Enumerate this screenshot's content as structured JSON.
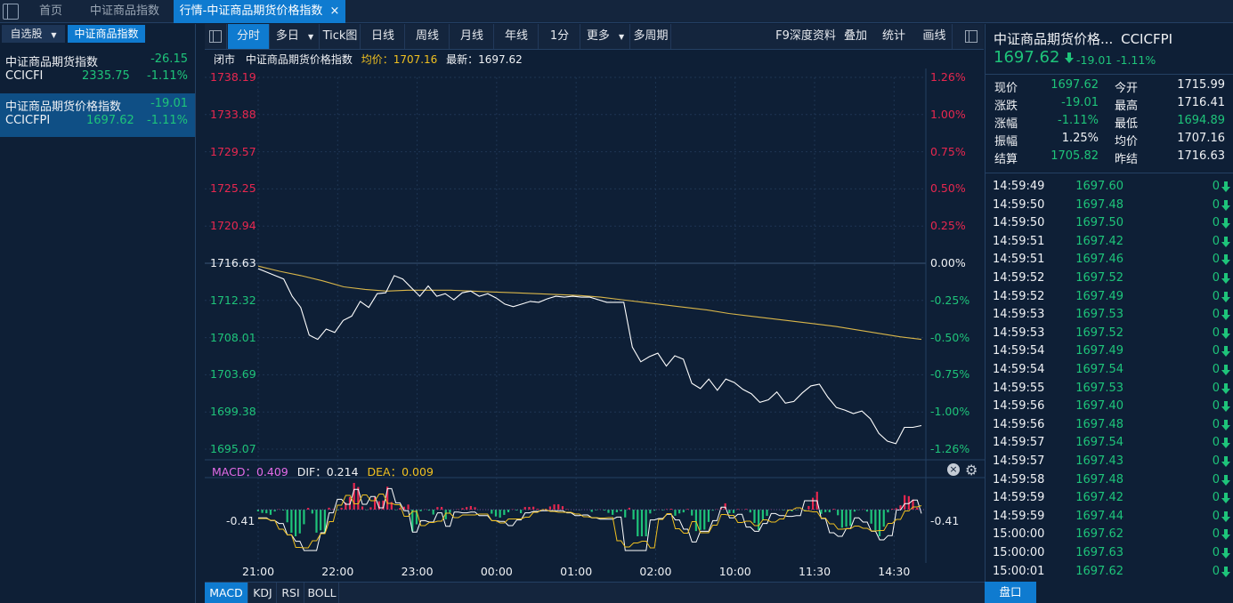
{
  "tabs": [
    {
      "label": "首页"
    },
    {
      "label": "中证商品指数"
    },
    {
      "label": "行情-中证商品期货价格指数",
      "close": "×"
    }
  ],
  "left_panel": {
    "tabs": [
      {
        "label": "自选股",
        "arrow": "▼"
      },
      {
        "label": "中证商品指数"
      }
    ],
    "watchlist": [
      {
        "name": "中证商品期货指数",
        "change": "-26.15",
        "code": "CCICFI",
        "price": "2335.75",
        "pct": "-1.11%"
      },
      {
        "name": "中证商品期货价格指数",
        "change": "-19.01",
        "code": "CCICFPI",
        "price": "1697.62",
        "pct": "-1.11%"
      }
    ]
  },
  "toolbar": {
    "buttons": [
      "分时",
      "多日",
      "Tick图",
      "日线",
      "周线",
      "月线",
      "年线",
      "1分",
      "更多",
      "多周期"
    ],
    "right_buttons": [
      "F9深度资料",
      "叠加",
      "统计",
      "画线"
    ],
    "dropdown_arrow": "▼"
  },
  "info_line": {
    "status": "闭市",
    "name": "中证商品期货价格指数",
    "avg_label": "均价：1707.16",
    "latest_label": "最新：1697.62"
  },
  "chart_data": {
    "type": "line",
    "price_axis": [
      "1738.19",
      "1733.88",
      "1729.57",
      "1725.25",
      "1720.94",
      "1716.63",
      "1712.32",
      "1708.01",
      "1703.69",
      "1699.38",
      "1695.07"
    ],
    "pct_axis": [
      "1.26%",
      "1.00%",
      "0.75%",
      "0.50%",
      "0.25%",
      "0.00%",
      "-0.25%",
      "-0.50%",
      "-0.75%",
      "-1.00%",
      "-1.26%"
    ],
    "time_axis": [
      "21:00",
      "22:00",
      "23:00",
      "00:00",
      "01:00",
      "02:00",
      "10:00",
      "11:30",
      "14:30"
    ],
    "ylim": [
      1695.07,
      1738.19
    ],
    "prev_settle": 1716.63,
    "price": [
      1716.0,
      1715.6,
      1715.2,
      1714.8,
      1712.8,
      1711.5,
      1708.3,
      1707.8,
      1709.0,
      1708.6,
      1710.0,
      1710.5,
      1712.2,
      1711.5,
      1713.1,
      1713.2,
      1715.2,
      1714.8,
      1713.8,
      1712.8,
      1714.0,
      1712.8,
      1713.1,
      1712.4,
      1713.2,
      1713.4,
      1712.8,
      1713.1,
      1712.6,
      1711.9,
      1711.6,
      1711.9,
      1712.2,
      1712.1,
      1712.5,
      1712.8,
      1712.7,
      1712.8,
      1712.7,
      1712.7,
      1712.4,
      1712.1,
      1712.1,
      1712.1,
      1706.9,
      1705.2,
      1705.8,
      1706.2,
      1704.7,
      1705.9,
      1705.5,
      1702.7,
      1702.1,
      1703.2,
      1701.9,
      1703.2,
      1702.8,
      1702.0,
      1701.5,
      1700.5,
      1700.8,
      1701.7,
      1700.4,
      1700.6,
      1701.6,
      1702.4,
      1702.6,
      1701.1,
      1699.9,
      1699.6,
      1699.2,
      1699.5,
      1698.6,
      1696.9,
      1696.0,
      1695.7,
      1697.6,
      1697.6,
      1697.8
    ],
    "avg": [
      1716.3,
      1715.7,
      1715.2,
      1714.6,
      1713.9,
      1713.6,
      1713.4,
      1713.5,
      1713.5,
      1713.5,
      1713.4,
      1713.3,
      1713.2,
      1713.1,
      1713.0,
      1712.9,
      1712.7,
      1712.4,
      1712.1,
      1711.8,
      1711.5,
      1711.2,
      1710.8,
      1710.5,
      1710.2,
      1709.9,
      1709.6,
      1709.3,
      1708.9,
      1708.5,
      1708.1,
      1707.8
    ],
    "macd": {
      "macd_label": "MACD：0.409",
      "dif_label": "DIF：0.214",
      "dea_label": "DEA：0.009",
      "axis_left": "-0.41",
      "axis_right": "-0.41"
    }
  },
  "indicator_tabs": [
    "MACD",
    "KDJ",
    "RSI",
    "BOLL"
  ],
  "quote": {
    "title": "中证商品期货价格...",
    "code": "CCICFPI",
    "price": "1697.62",
    "change": "-19.01",
    "pct": "-1.11%",
    "rows": [
      {
        "l1": "现价",
        "v1": "1697.62",
        "c1": "down",
        "l2": "今开",
        "v2": "1715.99",
        "c2": "white"
      },
      {
        "l1": "涨跌",
        "v1": "-19.01",
        "c1": "down",
        "l2": "最高",
        "v2": "1716.41",
        "c2": "white"
      },
      {
        "l1": "涨幅",
        "v1": "-1.11%",
        "c1": "down",
        "l2": "最低",
        "v2": "1694.89",
        "c2": "down"
      },
      {
        "l1": "振幅",
        "v1": "1.25%",
        "c1": "white",
        "l2": "均价",
        "v2": "1707.16",
        "c2": "white"
      },
      {
        "l1": "结算",
        "v1": "1705.82",
        "c1": "down",
        "l2": "昨结",
        "v2": "1716.63",
        "c2": "white"
      }
    ]
  },
  "ticks": [
    {
      "time": "14:59:49",
      "price": "1697.60",
      "vol": "0"
    },
    {
      "time": "14:59:50",
      "price": "1697.48",
      "vol": "0"
    },
    {
      "time": "14:59:50",
      "price": "1697.50",
      "vol": "0"
    },
    {
      "time": "14:59:51",
      "price": "1697.42",
      "vol": "0"
    },
    {
      "time": "14:59:51",
      "price": "1697.46",
      "vol": "0"
    },
    {
      "time": "14:59:52",
      "price": "1697.52",
      "vol": "0"
    },
    {
      "time": "14:59:52",
      "price": "1697.49",
      "vol": "0"
    },
    {
      "time": "14:59:53",
      "price": "1697.53",
      "vol": "0"
    },
    {
      "time": "14:59:53",
      "price": "1697.52",
      "vol": "0"
    },
    {
      "time": "14:59:54",
      "price": "1697.49",
      "vol": "0"
    },
    {
      "time": "14:59:54",
      "price": "1697.54",
      "vol": "0"
    },
    {
      "time": "14:59:55",
      "price": "1697.53",
      "vol": "0"
    },
    {
      "time": "14:59:56",
      "price": "1697.40",
      "vol": "0"
    },
    {
      "time": "14:59:56",
      "price": "1697.48",
      "vol": "0"
    },
    {
      "time": "14:59:57",
      "price": "1697.54",
      "vol": "0"
    },
    {
      "time": "14:59:57",
      "price": "1697.43",
      "vol": "0"
    },
    {
      "time": "14:59:58",
      "price": "1697.48",
      "vol": "0"
    },
    {
      "time": "14:59:59",
      "price": "1697.42",
      "vol": "0"
    },
    {
      "time": "14:59:59",
      "price": "1697.44",
      "vol": "0"
    },
    {
      "time": "15:00:00",
      "price": "1697.62",
      "vol": "0"
    },
    {
      "time": "15:00:00",
      "price": "1697.63",
      "vol": "0"
    },
    {
      "time": "15:00:01",
      "price": "1697.62",
      "vol": "0"
    }
  ],
  "bottom_right_tab": "盘口",
  "colors": {
    "up": "#e8274f",
    "down": "#1ec47a",
    "avg_line": "#d9b64a",
    "price_line": "#ffffff",
    "accent": "#0f7bd0"
  }
}
